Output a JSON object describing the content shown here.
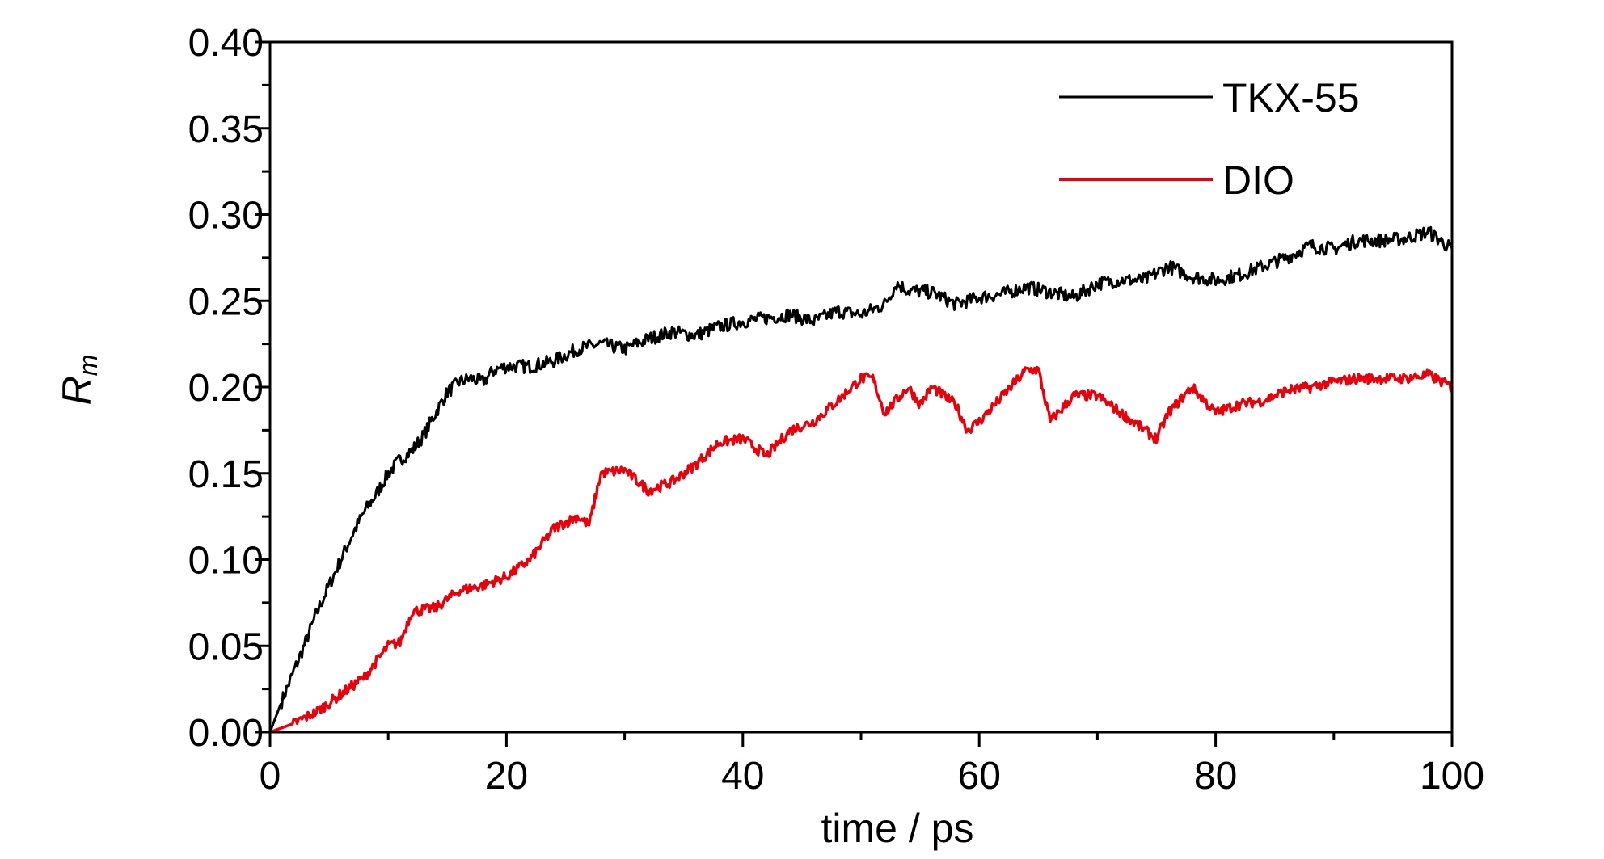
{
  "chart_data": {
    "type": "line",
    "xlabel": "time / ps",
    "ylabel_main": "R",
    "ylabel_sub": "m",
    "xlim": [
      0,
      100
    ],
    "ylim": [
      0,
      0.4
    ],
    "x_ticks": [
      "0",
      "20",
      "40",
      "60",
      "80",
      "100"
    ],
    "y_ticks": [
      "0.00",
      "0.05",
      "0.10",
      "0.15",
      "0.20",
      "0.25",
      "0.30",
      "0.35",
      "0.40"
    ],
    "legend_position": "top-right",
    "grid": false,
    "series": [
      {
        "name": "TKX-55",
        "color": "#000000",
        "x": [
          0,
          1,
          2,
          3,
          4,
          5,
          6,
          7,
          8,
          9,
          10,
          11,
          12,
          13,
          14,
          15,
          16,
          17,
          18,
          19,
          20,
          22,
          24,
          26,
          28,
          30,
          32,
          34,
          36,
          38,
          40,
          42,
          44,
          46,
          48,
          50,
          52,
          53,
          54,
          56,
          58,
          60,
          62,
          64,
          66,
          68,
          70,
          72,
          74,
          76,
          78,
          80,
          82,
          84,
          86,
          88,
          90,
          92,
          94,
          96,
          98,
          100
        ],
        "y": [
          0.0,
          0.018,
          0.035,
          0.052,
          0.07,
          0.085,
          0.1,
          0.115,
          0.128,
          0.138,
          0.15,
          0.158,
          0.163,
          0.172,
          0.185,
          0.197,
          0.203,
          0.205,
          0.203,
          0.21,
          0.212,
          0.212,
          0.215,
          0.222,
          0.225,
          0.222,
          0.228,
          0.232,
          0.23,
          0.235,
          0.238,
          0.24,
          0.242,
          0.238,
          0.244,
          0.242,
          0.248,
          0.26,
          0.256,
          0.255,
          0.248,
          0.252,
          0.254,
          0.258,
          0.255,
          0.252,
          0.26,
          0.262,
          0.262,
          0.27,
          0.264,
          0.262,
          0.265,
          0.27,
          0.275,
          0.282,
          0.28,
          0.285,
          0.285,
          0.286,
          0.29,
          0.28
        ]
      },
      {
        "name": "DIO",
        "color": "#e8000b",
        "x": [
          0,
          2,
          4,
          6,
          8,
          10,
          11,
          12,
          14,
          16,
          18,
          20,
          22,
          24,
          26,
          27,
          28,
          30,
          32,
          34,
          36,
          38,
          40,
          42,
          44,
          46,
          48,
          50,
          51,
          52,
          54,
          55,
          56,
          58,
          59,
          60,
          62,
          64,
          65,
          66,
          68,
          70,
          72,
          74,
          75,
          76,
          78,
          80,
          82,
          84,
          86,
          88,
          90,
          92,
          94,
          96,
          98,
          100
        ],
        "y": [
          0.0,
          0.005,
          0.012,
          0.022,
          0.032,
          0.05,
          0.052,
          0.07,
          0.072,
          0.082,
          0.085,
          0.09,
          0.1,
          0.118,
          0.125,
          0.12,
          0.15,
          0.152,
          0.14,
          0.145,
          0.155,
          0.168,
          0.17,
          0.16,
          0.175,
          0.18,
          0.192,
          0.205,
          0.205,
          0.185,
          0.2,
          0.19,
          0.2,
          0.19,
          0.175,
          0.18,
          0.195,
          0.21,
          0.21,
          0.18,
          0.195,
          0.195,
          0.185,
          0.175,
          0.17,
          0.185,
          0.2,
          0.185,
          0.19,
          0.192,
          0.198,
          0.2,
          0.203,
          0.205,
          0.205,
          0.205,
          0.207,
          0.2
        ]
      }
    ]
  }
}
